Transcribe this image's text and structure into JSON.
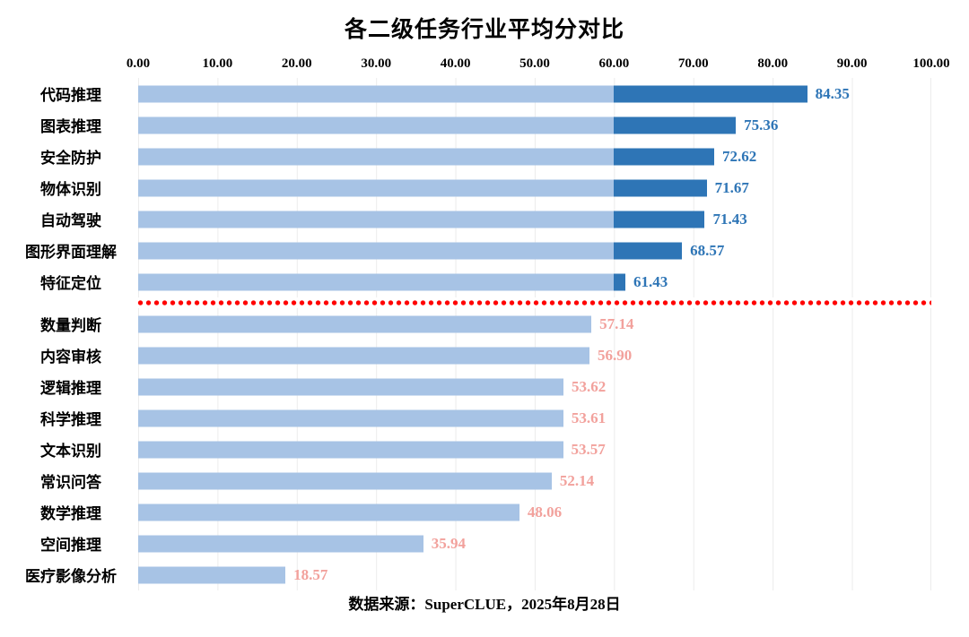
{
  "chart_data": {
    "type": "bar",
    "orientation": "horizontal",
    "title": "各二级任务行业平均分对比",
    "source": "数据来源：SuperCLUE，2025年8月28日",
    "xlim": [
      0,
      100
    ],
    "x_ticks": [
      "0.00",
      "10.00",
      "20.00",
      "30.00",
      "40.00",
      "50.00",
      "60.00",
      "70.00",
      "80.00",
      "90.00",
      "100.00"
    ],
    "threshold": 60,
    "divider_after_category": "特征定位",
    "grid": true,
    "legend_position": "none",
    "categories": [
      "代码推理",
      "图表推理",
      "安全防护",
      "物体识别",
      "自动驾驶",
      "图形界面理解",
      "特征定位",
      "数量判断",
      "内容审核",
      "逻辑推理",
      "科学推理",
      "文本识别",
      "常识问答",
      "数学推理",
      "空间推理",
      "医疗影像分析"
    ],
    "values": [
      "84.35",
      "75.36",
      "72.62",
      "71.67",
      "71.43",
      "68.57",
      "61.43",
      "57.14",
      "56.90",
      "53.62",
      "53.61",
      "53.57",
      "52.14",
      "48.06",
      "35.94",
      "18.57"
    ],
    "colors": {
      "bar_base": "#A7C3E5",
      "bar_above_threshold": "#2E75B6",
      "value_label_above": "#2E75B6",
      "value_label_below": "#F2A19C",
      "divider": "#FF0000",
      "gridline": "#ECECEC",
      "axis_text": "#000000"
    }
  }
}
